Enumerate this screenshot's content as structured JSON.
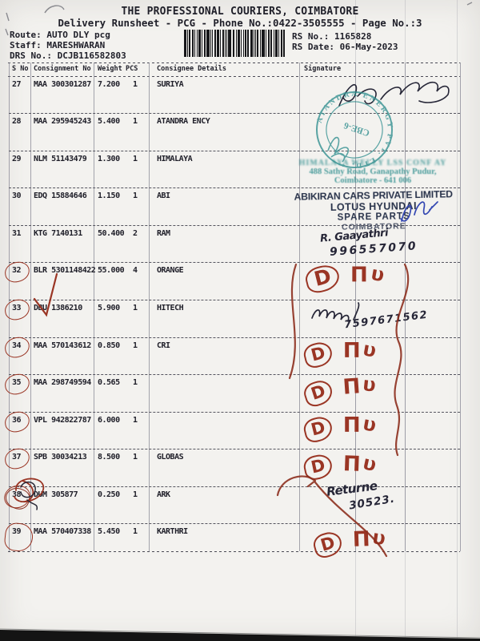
{
  "header": {
    "company": "THE PROFESSIONAL COURIERS, COIMBATORE",
    "runsheet_line": "Delivery Runsheet - PCG - Phone No.:0422-3505555 - Page No.:3",
    "route": "Route: AUTO DLY pcg",
    "staff": "Staff: MARESHWARAN",
    "drs_no": "DRS No.: DCJB116582803",
    "rs_no": "RS No.: 1165828",
    "rs_date": "RS Date: 06-May-2023"
  },
  "table": {
    "columns": [
      "S No",
      "Consignment No",
      "Weight",
      "PCS",
      "Consignee Details",
      "Signature"
    ],
    "rows": [
      {
        "s_no": "27",
        "consignment_no": "MAA 300301287",
        "weight": "7.200",
        "pcs": "1",
        "consignee": "SURIYA",
        "circled": false,
        "scribbled": false,
        "mark": "signature"
      },
      {
        "s_no": "28",
        "consignment_no": "MAA 295945243",
        "weight": "5.400",
        "pcs": "1",
        "consignee": "ATANDRA ENCY",
        "circled": false,
        "scribbled": false,
        "mark": null
      },
      {
        "s_no": "29",
        "consignment_no": "NLM 51143479",
        "weight": "1.300",
        "pcs": "1",
        "consignee": "HIMALAYA",
        "circled": false,
        "scribbled": false,
        "mark": null
      },
      {
        "s_no": "30",
        "consignment_no": "EDQ 15884646",
        "weight": "1.150",
        "pcs": "1",
        "consignee": "ABI",
        "circled": false,
        "scribbled": false,
        "mark": null
      },
      {
        "s_no": "31",
        "consignment_no": "KTG 7140131",
        "weight": "50.400",
        "pcs": "2",
        "consignee": "RAM",
        "circled": false,
        "scribbled": false,
        "mark": "name_phone"
      },
      {
        "s_no": "32",
        "consignment_no": "BLR 5301148422",
        "weight": "55.000",
        "pcs": "4",
        "consignee": "ORANGE",
        "circled": true,
        "scribbled": false,
        "mark": "dtiv"
      },
      {
        "s_no": "33",
        "consignment_no": "DBU 1386210",
        "weight": "5.900",
        "pcs": "1",
        "consignee": "HITECH",
        "circled": true,
        "scribbled": false,
        "mark": "sig_phone"
      },
      {
        "s_no": "34",
        "consignment_no": "MAA 570143612",
        "weight": "0.850",
        "pcs": "1",
        "consignee": "CRI",
        "circled": true,
        "scribbled": false,
        "mark": "dtiv"
      },
      {
        "s_no": "35",
        "consignment_no": "MAA 298749594",
        "weight": "0.565",
        "pcs": "1",
        "consignee": "",
        "circled": true,
        "scribbled": false,
        "mark": "dtiv"
      },
      {
        "s_no": "36",
        "consignment_no": "VPL 942822787",
        "weight": "6.000",
        "pcs": "1",
        "consignee": "",
        "circled": true,
        "scribbled": false,
        "mark": "dtiv"
      },
      {
        "s_no": "37",
        "consignment_no": "SPB 30034213",
        "weight": "8.500",
        "pcs": "1",
        "consignee": "GLOBAS",
        "circled": true,
        "scribbled": false,
        "mark": "dtiv"
      },
      {
        "s_no": "38",
        "consignment_no": "DUM 305877",
        "weight": "0.250",
        "pcs": "1",
        "consignee": "ARK",
        "circled": false,
        "scribbled": true,
        "mark": "return_note"
      },
      {
        "s_no": "39",
        "consignment_no": "MAA 570407338",
        "weight": "5.450",
        "pcs": "1",
        "consignee": "KARTHRI",
        "circled": true,
        "scribbled": false,
        "mark": "dtiv"
      }
    ]
  },
  "stamps": {
    "atandra": {
      "arc_text": "ATANDRA ENERGY PVT. LTD.",
      "center_text": "CBE-6",
      "star": "*"
    },
    "address": {
      "line1_illegible": "HIMALAYA WELLY LSS CONF AY",
      "line2": "488 Sathy Road, Ganapathy Pudur,",
      "line3": "Coimbatore - 641 006"
    },
    "abikiran": {
      "line1": "ABIKIRAN CARS PRIVATE LIMITED",
      "line2": "LOTUS HYUNDAI",
      "line3": "SPARE PARTS",
      "line4": "COIMBATORE"
    }
  },
  "handwriting": {
    "row31_name": "R. Gaayathri",
    "row31_phone": "996557070",
    "row33_phone": "7597671562",
    "row38_note": "Returne",
    "row38_number": "30523.",
    "dtiv_d": "D",
    "dtiv_pi": "Π",
    "dtiv_u": "υ"
  },
  "colors": {
    "red_ink": "#9a3524",
    "dark_ink": "#262637",
    "teal_stamp": "#2f8e8e",
    "navy_stamp": "#28324a",
    "blue_pen": "#3347b2",
    "paper": "#f3f2ef"
  }
}
